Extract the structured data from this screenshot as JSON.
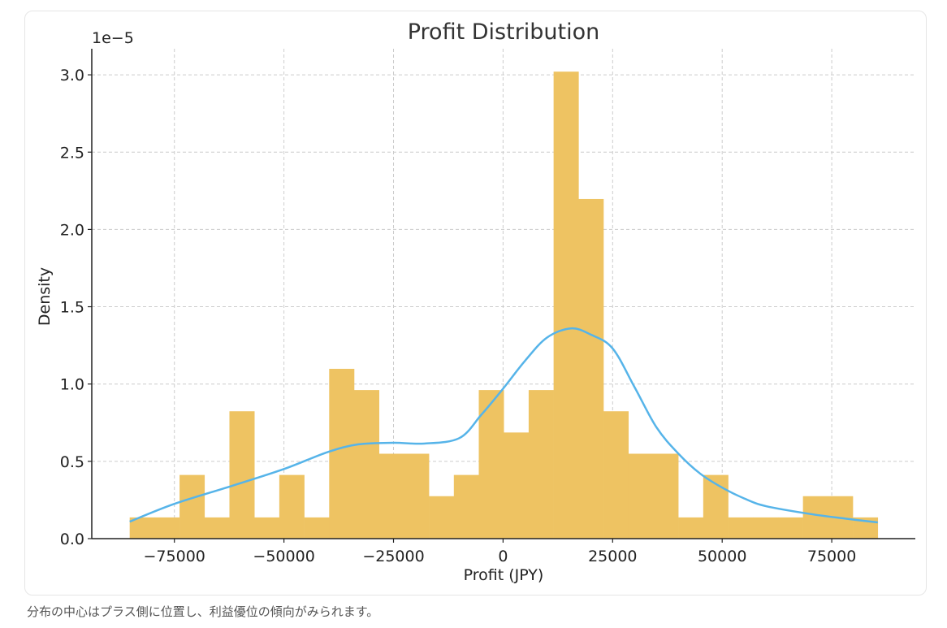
{
  "chart_data": {
    "type": "bar",
    "subtype": "histogram-with-kde",
    "title": "Profit Distribution",
    "xlabel": "Profit (JPY)",
    "ylabel": "Density",
    "y_scale_label": "1e−5",
    "y_multiplier": 1e-05,
    "xlim": [
      -93850,
      94070
    ],
    "ylim": [
      0,
      3.17
    ],
    "grid": true,
    "x_ticks": [
      -75000,
      -50000,
      -25000,
      0,
      25000,
      50000,
      75000
    ],
    "x_tick_labels": [
      "−75000",
      "−50000",
      "−25000",
      "0",
      "25000",
      "50000",
      "75000"
    ],
    "y_ticks": [
      0,
      0.5,
      1.0,
      1.5,
      2.0,
      2.5,
      3.0
    ],
    "y_tick_labels": [
      "0.0",
      "0.5",
      "1.0",
      "1.5",
      "2.0",
      "2.5",
      "3.0"
    ],
    "bins": {
      "start": -85200,
      "end": 85500,
      "count": 30,
      "counts": [
        1,
        1,
        3,
        1,
        6,
        1,
        3,
        1,
        8,
        7,
        4,
        4,
        2,
        3,
        7,
        5,
        7,
        22,
        16,
        6,
        4,
        4,
        1,
        3,
        1,
        1,
        1,
        2,
        2,
        1
      ],
      "density_per_count": 0.1373,
      "color": "#EEC362"
    },
    "kde": {
      "color": "#56B4E9",
      "x": [
        -85200,
        -75000,
        -62000,
        -50000,
        -40000,
        -33000,
        -25000,
        -18000,
        -10000,
        -5000,
        0,
        5000,
        10000,
        15500,
        20000,
        25000,
        30000,
        35000,
        40000,
        45000,
        50000,
        55000,
        60000,
        70000,
        78000,
        85500
      ],
      "y": [
        0.11,
        0.225,
        0.34,
        0.45,
        0.56,
        0.61,
        0.62,
        0.615,
        0.65,
        0.8,
        0.97,
        1.15,
        1.3,
        1.36,
        1.32,
        1.23,
        0.98,
        0.72,
        0.55,
        0.42,
        0.33,
        0.26,
        0.21,
        0.16,
        0.13,
        0.105
      ]
    }
  },
  "caption": "分布の中心はプラス側に位置し、利益優位の傾向がみられます。"
}
